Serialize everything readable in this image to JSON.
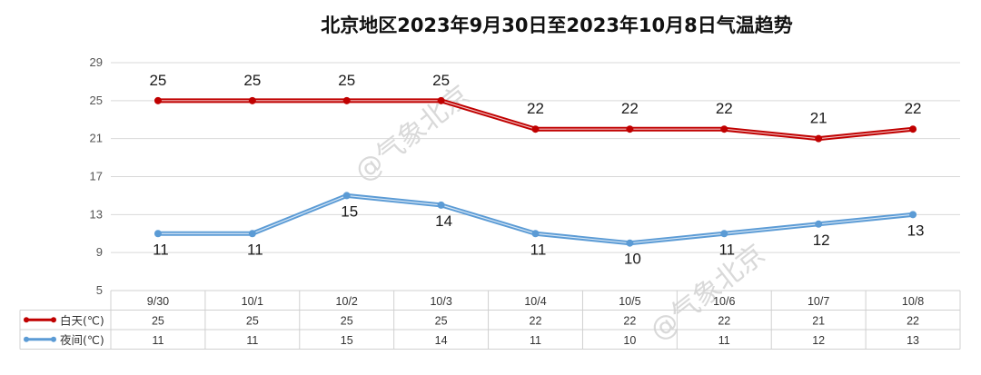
{
  "chart_data": {
    "type": "line",
    "title": "北京地区2023年9月30日至2023年10月8日气温趋势",
    "categories": [
      "9/30",
      "10/1",
      "10/2",
      "10/3",
      "10/4",
      "10/5",
      "10/6",
      "10/7",
      "10/8"
    ],
    "series": [
      {
        "name": "白天(℃)",
        "color": "#c00000",
        "values": [
          25,
          25,
          25,
          25,
          22,
          22,
          22,
          21,
          22
        ]
      },
      {
        "name": "夜间(℃)",
        "color": "#5b9bd5",
        "values": [
          11,
          11,
          15,
          14,
          11,
          10,
          11,
          12,
          13
        ]
      }
    ],
    "ylim": [
      5,
      29
    ],
    "yticks": [
      "5",
      "9",
      "13",
      "17",
      "21",
      "25",
      "29"
    ],
    "grid": true,
    "legend": "data-table",
    "watermarks": [
      "@气象北京",
      "@气象北京"
    ]
  }
}
